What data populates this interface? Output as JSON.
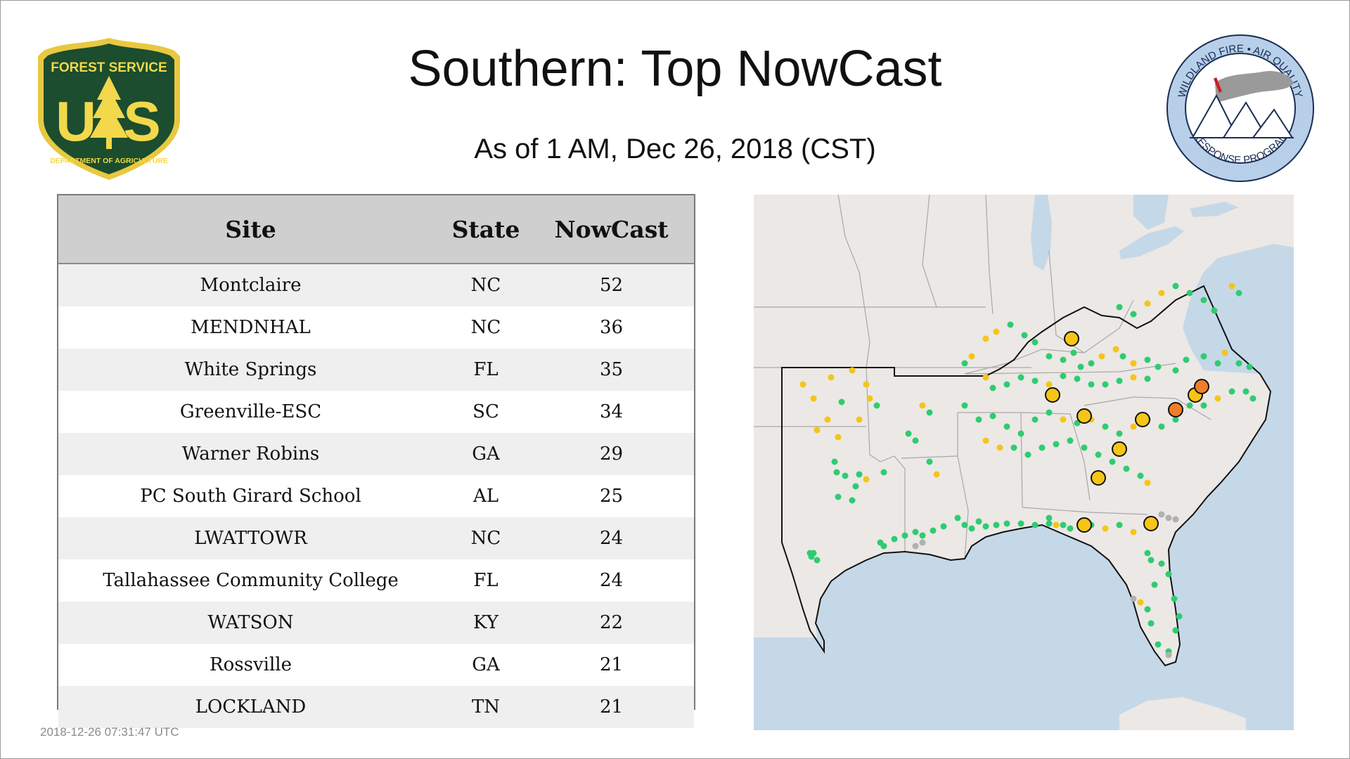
{
  "header": {
    "title": "Southern: Top NowCast",
    "subtitle": "As of  1 AM, Dec 26, 2018 (CST)"
  },
  "logos": {
    "forest_service": {
      "top_text": "FOREST SERVICE",
      "bottom_text": "DEPARTMENT OF AGRICULTURE",
      "monogram_left": "U",
      "monogram_right": "S",
      "colors": {
        "shield": "#1b4d2e",
        "border": "#e8c840",
        "text": "#f2d84a"
      }
    },
    "wildland_fire": {
      "top_text": "WILDLAND FIRE • AIR QUALITY",
      "bottom_text": "RESPONSE PROGRAM",
      "colors": {
        "ring": "#b7cfe8",
        "text": "#1a2e55",
        "smoke": "#9a9a9a",
        "flame": "#cc1f1f"
      }
    }
  },
  "table": {
    "headers": {
      "site": "Site",
      "state": "State",
      "nowcast": "NowCast"
    },
    "rows": [
      {
        "site": "Montclaire",
        "state": "NC",
        "nowcast": "52"
      },
      {
        "site": "MENDNHAL",
        "state": "NC",
        "nowcast": "36"
      },
      {
        "site": "White Springs",
        "state": "FL",
        "nowcast": "35"
      },
      {
        "site": "Greenville-ESC",
        "state": "SC",
        "nowcast": "34"
      },
      {
        "site": "Warner Robins",
        "state": "GA",
        "nowcast": "29"
      },
      {
        "site": "PC South Girard School",
        "state": "AL",
        "nowcast": "25"
      },
      {
        "site": "LWATTOWR",
        "state": "NC",
        "nowcast": "24"
      },
      {
        "site": "Tallahassee Community College",
        "state": "FL",
        "nowcast": "24"
      },
      {
        "site": "WATSON",
        "state": "KY",
        "nowcast": "22"
      },
      {
        "site": "Rossville",
        "state": "GA",
        "nowcast": "21"
      },
      {
        "site": "LOCKLAND",
        "state": "TN",
        "nowcast": "21"
      }
    ]
  },
  "timestamp": "2018-12-26 07:31:47 UTC",
  "map": {
    "colors": {
      "land": "#ece8e5",
      "water": "#c5d8e8",
      "state_border": "#a8a8a8",
      "region_border": "#111111",
      "good": "#2ecc71",
      "moderate": "#f5c518",
      "usg": "#f07d2a",
      "neutral": "#b0b0b0"
    },
    "marker_categories": [
      "good",
      "moderate",
      "usg"
    ],
    "icons": [
      "site-marker-icon",
      "top-site-marker-icon"
    ]
  }
}
